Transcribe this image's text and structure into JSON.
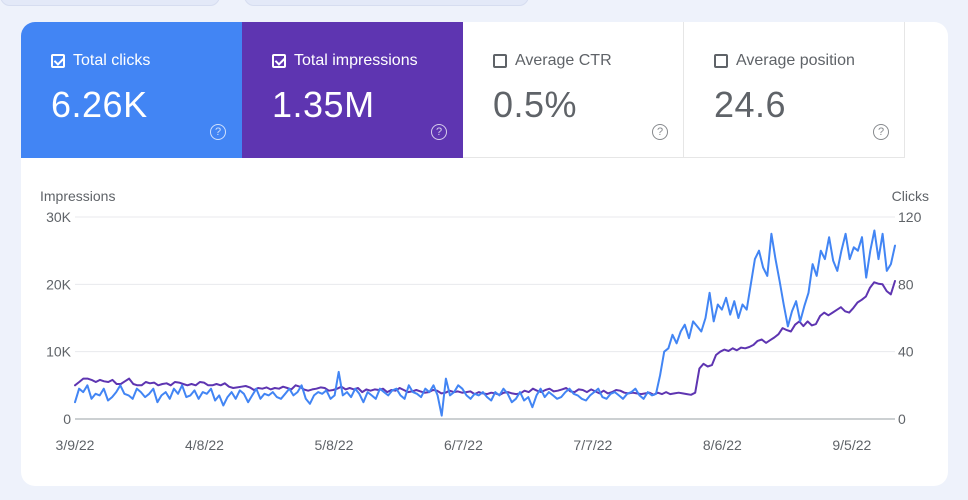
{
  "metrics": {
    "clicks": {
      "label": "Total clicks",
      "value": "6.26K",
      "checked": true,
      "color": "#4285f4"
    },
    "impressions": {
      "label": "Total impressions",
      "value": "1.35M",
      "checked": true,
      "color": "#5e35b1"
    },
    "ctr": {
      "label": "Average CTR",
      "value": "0.5%",
      "checked": false
    },
    "position": {
      "label": "Average position",
      "value": "24.6",
      "checked": false
    }
  },
  "help_glyph": "?",
  "chart_data": {
    "type": "line",
    "left_axis_label": "Impressions",
    "right_axis_label": "Clicks",
    "left_ylim": [
      0,
      30000
    ],
    "right_ylim": [
      0,
      120
    ],
    "left_ticks": [
      {
        "value": 0,
        "label": "0"
      },
      {
        "value": 10000,
        "label": "10K"
      },
      {
        "value": 20000,
        "label": "20K"
      },
      {
        "value": 30000,
        "label": "30K"
      }
    ],
    "right_ticks": [
      {
        "value": 0,
        "label": "0"
      },
      {
        "value": 40,
        "label": "40"
      },
      {
        "value": 80,
        "label": "80"
      },
      {
        "value": 120,
        "label": "120"
      }
    ],
    "x_labels": [
      "3/9/22",
      "4/8/22",
      "5/8/22",
      "6/7/22",
      "7/7/22",
      "8/6/22",
      "9/5/22"
    ],
    "x_label_days": [
      0,
      30,
      60,
      90,
      120,
      150,
      180
    ],
    "x_range_days": [
      0,
      190
    ],
    "series": [
      {
        "name": "Impressions",
        "axis": "left",
        "color": "#5e35b1",
        "values": [
          5000,
          5500,
          6000,
          6000,
          5800,
          5500,
          5800,
          5600,
          5500,
          5800,
          5200,
          5200,
          5600,
          6000,
          5200,
          5000,
          5000,
          5500,
          5300,
          5400,
          5000,
          5200,
          5300,
          5000,
          5500,
          5400,
          5200,
          5000,
          5200,
          5000,
          5500,
          5400,
          5000,
          5000,
          5200,
          5000,
          5300,
          4800,
          4600,
          4700,
          4800,
          4900,
          4700,
          4300,
          4600,
          4500,
          4700,
          4400,
          4600,
          4500,
          4800,
          4600,
          4400,
          5000,
          4800,
          4400,
          4200,
          4400,
          4500,
          4700,
          4600,
          4200,
          4300,
          4500,
          4800,
          4400,
          4600,
          4400,
          4600,
          4000,
          4400,
          4200,
          4400,
          4300,
          4500,
          4000,
          4300,
          4200,
          4600,
          4300,
          4000,
          4100,
          4300,
          4100,
          3900,
          4000,
          4300,
          4200,
          3800,
          3900,
          4200,
          4000,
          4100,
          3900,
          4000,
          4100,
          3700,
          4000,
          3800,
          3700,
          3900,
          3800,
          3600,
          3900,
          4000,
          3800,
          3700,
          3800,
          4200,
          4000,
          4500,
          4200,
          4000,
          4300,
          4500,
          4100,
          4200,
          4400,
          4600,
          4100,
          4000,
          4400,
          4300,
          4000,
          4400,
          4100,
          3800,
          4200,
          3800,
          4000,
          4300,
          4200,
          3900,
          3800,
          3900,
          3800,
          3700,
          3800,
          3900,
          3600,
          3900,
          3700,
          4000,
          3700,
          3800,
          3900,
          3800,
          3700,
          3600,
          3900,
          7500,
          8200,
          7800,
          8000,
          9500,
          10000,
          10300,
          10100,
          10500,
          10200,
          10600,
          10500,
          10700,
          11000,
          11600,
          11800,
          11300,
          11700,
          12100,
          12600,
          13500,
          13200,
          13000,
          14000,
          14500,
          13800,
          14500,
          13900,
          14100,
          15300,
          15800,
          15400,
          15800,
          16200,
          16600,
          16000,
          15800,
          16500,
          17300,
          17700,
          18200,
          19500,
          20300,
          20100,
          20000,
          19000,
          18500,
          20500
        ]
      },
      {
        "name": "Clicks",
        "axis": "right",
        "color": "#4285f4",
        "values": [
          10,
          18,
          16,
          20,
          12,
          15,
          14,
          18,
          11,
          13,
          16,
          20,
          15,
          14,
          12,
          18,
          16,
          13,
          15,
          18,
          10,
          14,
          16,
          12,
          18,
          15,
          20,
          13,
          14,
          17,
          12,
          16,
          15,
          18,
          11,
          14,
          8,
          13,
          16,
          12,
          17,
          15,
          10,
          14,
          18,
          12,
          15,
          14,
          16,
          13,
          12,
          15,
          18,
          14,
          16,
          20,
          12,
          9,
          14,
          16,
          15,
          17,
          12,
          14,
          28,
          14,
          16,
          13,
          18,
          15,
          10,
          16,
          14,
          12,
          18,
          16,
          14,
          17,
          18,
          14,
          12,
          20,
          16,
          15,
          13,
          18,
          16,
          20,
          14,
          2,
          24,
          14,
          16,
          20,
          18,
          14,
          12,
          15,
          14,
          16,
          13,
          11,
          16,
          14,
          18,
          15,
          10,
          12,
          16,
          11,
          13,
          7,
          14,
          18,
          13,
          16,
          14,
          12,
          13,
          16,
          18,
          15,
          14,
          12,
          11,
          14,
          16,
          18,
          13,
          12,
          15,
          16,
          14,
          12,
          15,
          16,
          18,
          14,
          12,
          16,
          14,
          15,
          26,
          40,
          42,
          50,
          45,
          52,
          56,
          48,
          58,
          55,
          52,
          60,
          75,
          58,
          68,
          65,
          72,
          62,
          70,
          60,
          68,
          65,
          80,
          95,
          100,
          90,
          85,
          110,
          95,
          82,
          68,
          55,
          64,
          70,
          58,
          67,
          75,
          92,
          85,
          100,
          95,
          108,
          94,
          88,
          100,
          110,
          95,
          102,
          100,
          108,
          84,
          100,
          112,
          95,
          110,
          88,
          92,
          103
        ]
      }
    ]
  }
}
